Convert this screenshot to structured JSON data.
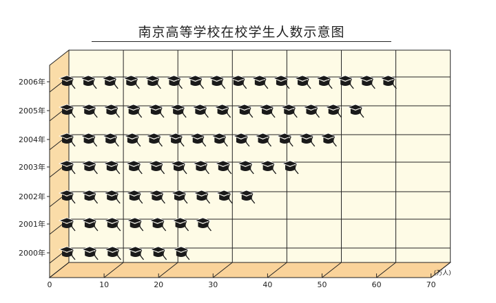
{
  "chart_data": {
    "type": "bar",
    "orientation": "horizontal",
    "style": "pictograph-3d",
    "title": "南京高等学校在校学生人数示意图",
    "unit_label": "(万人)",
    "categories": [
      "2000年",
      "2001年",
      "2002年",
      "2003年",
      "2004年",
      "2005年",
      "2006年"
    ],
    "values": [
      24,
      28,
      36,
      44,
      51,
      56,
      62
    ],
    "pictogram_icon": "graduation-cap-icon",
    "xlim": [
      0,
      70
    ],
    "x_ticks": [
      0,
      10,
      20,
      30,
      40,
      50,
      60,
      70
    ],
    "grid": true,
    "colors": {
      "back_wall": "#fefbe6",
      "floor": "#fad39a",
      "side": "#fadca8",
      "icon": "#1a1a1a"
    }
  }
}
